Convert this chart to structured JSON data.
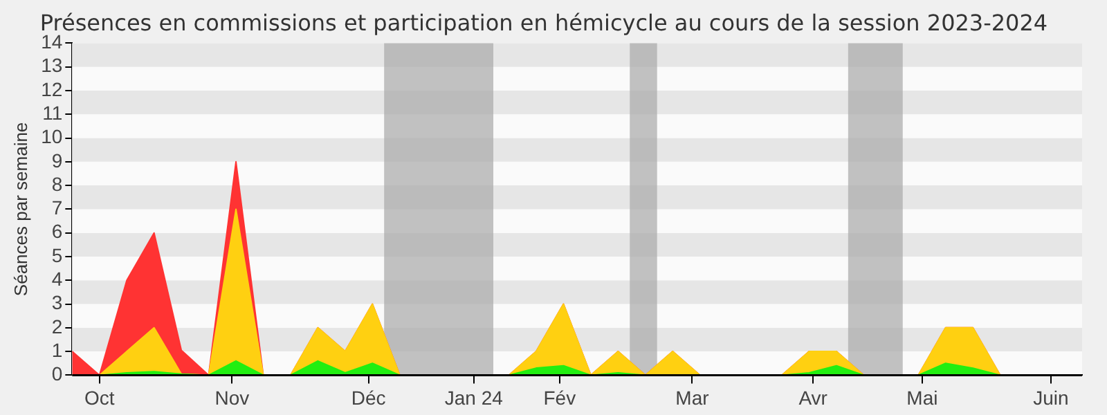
{
  "chart_data": {
    "type": "area",
    "title": "Présences en commissions et participation en hémicycle au cours de la session 2023-2024",
    "ylabel": "Séances par semaine",
    "stacked": true,
    "x": [
      "2023-09-24",
      "2023-10-01",
      "2023-10-08",
      "2023-10-15",
      "2023-10-22",
      "2023-10-29",
      "2023-11-05",
      "2023-11-12",
      "2023-11-19",
      "2023-11-26",
      "2023-12-03",
      "2023-12-10",
      "2023-12-17",
      "2023-12-24",
      "2023-12-31",
      "2024-01-07",
      "2024-01-14",
      "2024-01-21",
      "2024-01-28",
      "2024-02-04",
      "2024-02-11",
      "2024-02-18",
      "2024-02-25",
      "2024-03-03",
      "2024-03-10",
      "2024-03-17",
      "2024-03-24",
      "2024-03-31",
      "2024-04-07",
      "2024-04-14",
      "2024-04-21",
      "2024-04-28",
      "2024-05-05",
      "2024-05-12",
      "2024-05-19",
      "2024-05-26",
      "2024-06-02",
      "2024-06-09"
    ],
    "series": [
      {
        "color": "#22ee11",
        "values": [
          0,
          0,
          0.1,
          0.15,
          0.05,
          0,
          0.6,
          0,
          0,
          0.6,
          0.1,
          0.5,
          0,
          0,
          0,
          0,
          0,
          0.3,
          0.4,
          0,
          0.1,
          0,
          0,
          0,
          0,
          0,
          0,
          0.1,
          0.4,
          0,
          0,
          0,
          0.5,
          0.3,
          0,
          0,
          0,
          0
        ]
      },
      {
        "color": "#ffd011",
        "values": [
          0,
          0,
          0.9,
          1.85,
          0,
          0,
          6.4,
          0,
          0,
          1.4,
          0.9,
          2.5,
          0,
          0,
          0,
          0,
          0,
          0.7,
          2.6,
          0,
          0.9,
          0,
          1,
          0,
          0,
          0,
          0,
          0.9,
          0.6,
          0,
          0,
          0,
          1.5,
          1.7,
          0,
          0,
          0,
          0
        ]
      },
      {
        "color": "#ff3333",
        "values": [
          1,
          0,
          3,
          4,
          1,
          0,
          2,
          0,
          0,
          0,
          0,
          0,
          0,
          0,
          0,
          0,
          0,
          0,
          0,
          0,
          0,
          0,
          0,
          0,
          0,
          0,
          0,
          0,
          0,
          0,
          0,
          0,
          0,
          0,
          0,
          0,
          0,
          0
        ]
      }
    ],
    "xlim": [
      "2023-09-24",
      "2024-06-09"
    ],
    "xticks": [
      {
        "value": "2023-10-01",
        "label": "Oct"
      },
      {
        "value": "2023-11-04",
        "label": "Nov"
      },
      {
        "value": "2023-12-09",
        "label": "Déc"
      },
      {
        "value": "2024-01-05",
        "label": "Jan 24"
      },
      {
        "value": "2024-01-27",
        "label": "Fév"
      },
      {
        "value": "2024-03-01",
        "label": "Mar"
      },
      {
        "value": "2024-04-01",
        "label": "Avr"
      },
      {
        "value": "2024-04-29",
        "label": "Mai"
      },
      {
        "value": "2024-06-01",
        "label": "Juin"
      }
    ],
    "ylim": [
      0,
      14
    ],
    "yticks": [
      0,
      1,
      2,
      3,
      4,
      5,
      6,
      7,
      8,
      9,
      10,
      11,
      12,
      13,
      14
    ],
    "legend": false,
    "bands": [
      {
        "axis": "x",
        "from": "2023-12-13",
        "to": "2024-01-10",
        "color": "#a8a8a8"
      },
      {
        "axis": "x",
        "from": "2024-02-14",
        "to": "2024-02-21",
        "color": "#a8a8a8"
      },
      {
        "axis": "x",
        "from": "2024-04-10",
        "to": "2024-04-24",
        "color": "#a8a8a8"
      }
    ]
  }
}
